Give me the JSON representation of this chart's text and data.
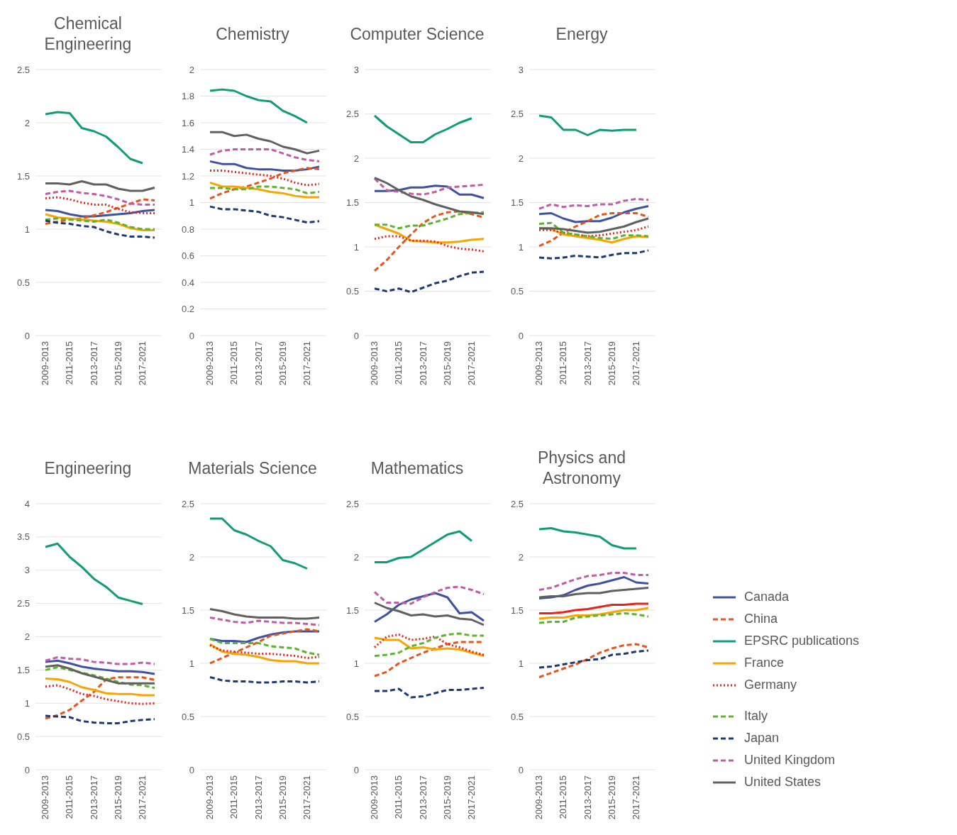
{
  "chart_data": [
    {
      "type": "line",
      "title": "Chemical Engineering",
      "categories": [
        "2009-2013",
        null,
        "2011-2015",
        null,
        "2013-2017",
        null,
        "2015-2019",
        null,
        "2017-2021",
        null
      ],
      "ylim": [
        0,
        2.5
      ],
      "yticks": [
        0,
        0.5,
        1,
        1.5,
        2,
        2.5
      ],
      "grid": "y",
      "legend": "right",
      "series": [
        {
          "name": "Canada",
          "color": "#3f51a3",
          "line_style": "solid",
          "values": [
            1.18,
            1.17,
            1.14,
            1.12,
            1.12,
            1.13,
            1.14,
            1.15,
            1.17,
            1.18
          ]
        },
        {
          "name": "China",
          "color": "#e8541a",
          "line_style": "dashed",
          "values": [
            1.05,
            1.07,
            1.09,
            1.1,
            1.13,
            1.16,
            1.2,
            1.24,
            1.28,
            1.27
          ]
        },
        {
          "name": "EPSRC publications",
          "color": "#0f9d77",
          "line_style": "solid",
          "values": [
            2.08,
            2.1,
            2.09,
            1.95,
            1.92,
            1.87,
            1.77,
            1.66,
            1.62,
            null
          ]
        },
        {
          "name": "France",
          "color": "#f9a400",
          "line_style": "solid",
          "values": [
            1.14,
            1.11,
            1.1,
            1.09,
            1.08,
            1.07,
            1.05,
            1.01,
            0.99,
            0.99
          ]
        },
        {
          "name": "Germany",
          "color": "#e8231c",
          "line_style": "dotted",
          "values": [
            1.29,
            1.3,
            1.28,
            1.25,
            1.23,
            1.23,
            1.19,
            1.16,
            1.15,
            1.15
          ]
        },
        {
          "name": "Italy",
          "color": "#5db52e",
          "line_style": "dashed",
          "values": [
            1.09,
            1.1,
            1.09,
            1.08,
            1.07,
            1.09,
            1.06,
            1.02,
            1.0,
            1.0
          ]
        },
        {
          "name": "Japan",
          "color": "#1f3a6e",
          "line_style": "dashed",
          "values": [
            1.08,
            1.06,
            1.05,
            1.03,
            1.02,
            0.98,
            0.95,
            0.93,
            0.93,
            0.92
          ]
        },
        {
          "name": "United Kingdom",
          "color": "#c35ba8",
          "line_style": "dashed",
          "values": [
            1.33,
            1.35,
            1.36,
            1.34,
            1.33,
            1.31,
            1.28,
            1.24,
            1.23,
            1.23
          ]
        },
        {
          "name": "United States",
          "color": "#606060",
          "line_style": "solid",
          "values": [
            1.43,
            1.43,
            1.42,
            1.45,
            1.42,
            1.42,
            1.38,
            1.36,
            1.36,
            1.39
          ]
        }
      ]
    },
    {
      "type": "line",
      "title": "Chemistry",
      "categories": [
        "2009-2013",
        null,
        "2011-2015",
        null,
        "2013-2017",
        null,
        "2015-2019",
        null,
        "2017-2021",
        null
      ],
      "ylim": [
        0,
        2
      ],
      "yticks": [
        0,
        0.2,
        0.4,
        0.6,
        0.8,
        1,
        1.2,
        1.4,
        1.6,
        1.8,
        2
      ],
      "grid": "y",
      "series": [
        {
          "color": "#3f51a3",
          "line_style": "solid",
          "values": [
            1.31,
            1.29,
            1.29,
            1.26,
            1.25,
            1.25,
            1.24,
            1.24,
            1.25,
            1.27
          ]
        },
        {
          "color": "#e8541a",
          "line_style": "dashed",
          "values": [
            1.03,
            1.07,
            1.1,
            1.12,
            1.15,
            1.18,
            1.22,
            1.24,
            1.26,
            1.25
          ]
        },
        {
          "color": "#0f9d77",
          "line_style": "solid",
          "values": [
            1.84,
            1.85,
            1.84,
            1.8,
            1.77,
            1.76,
            1.69,
            1.65,
            1.6,
            null
          ]
        },
        {
          "color": "#f9a400",
          "line_style": "solid",
          "values": [
            1.15,
            1.12,
            1.12,
            1.11,
            1.1,
            1.08,
            1.07,
            1.05,
            1.04,
            1.04
          ]
        },
        {
          "color": "#e8231c",
          "line_style": "dotted",
          "values": [
            1.24,
            1.24,
            1.23,
            1.22,
            1.21,
            1.2,
            1.18,
            1.15,
            1.13,
            1.14
          ]
        },
        {
          "color": "#5db52e",
          "line_style": "dashed",
          "values": [
            1.11,
            1.11,
            1.1,
            1.1,
            1.12,
            1.12,
            1.11,
            1.1,
            1.07,
            1.08
          ]
        },
        {
          "color": "#1f3a6e",
          "line_style": "dashed",
          "values": [
            0.97,
            0.95,
            0.95,
            0.94,
            0.93,
            0.9,
            0.89,
            0.87,
            0.85,
            0.86
          ]
        },
        {
          "color": "#c35ba8",
          "line_style": "dashed",
          "values": [
            1.36,
            1.39,
            1.4,
            1.4,
            1.4,
            1.4,
            1.37,
            1.34,
            1.32,
            1.31
          ]
        },
        {
          "color": "#606060",
          "line_style": "solid",
          "values": [
            1.53,
            1.53,
            1.5,
            1.51,
            1.48,
            1.46,
            1.42,
            1.4,
            1.37,
            1.39
          ]
        }
      ]
    },
    {
      "type": "line",
      "title": "Computer Science",
      "categories": [
        "2009-2013",
        null,
        "2011-2015",
        null,
        "2013-2017",
        null,
        "2015-2019",
        null,
        "2017-2021",
        null
      ],
      "ylim": [
        0,
        3
      ],
      "yticks": [
        0,
        0.5,
        1,
        1.5,
        2,
        2.5,
        3
      ],
      "grid": "y",
      "series": [
        {
          "color": "#3f51a3",
          "line_style": "solid",
          "values": [
            1.63,
            1.63,
            1.64,
            1.67,
            1.67,
            1.69,
            1.68,
            1.59,
            1.59,
            1.55
          ]
        },
        {
          "color": "#e8541a",
          "line_style": "dashed",
          "values": [
            0.73,
            0.85,
            1.0,
            1.14,
            1.27,
            1.35,
            1.39,
            1.4,
            1.37,
            1.33
          ]
        },
        {
          "color": "#0f9d77",
          "line_style": "solid",
          "values": [
            2.48,
            2.36,
            2.27,
            2.18,
            2.18,
            2.27,
            2.33,
            2.4,
            2.45,
            null
          ]
        },
        {
          "color": "#f9a400",
          "line_style": "solid",
          "values": [
            1.25,
            1.2,
            1.15,
            1.07,
            1.06,
            1.05,
            1.05,
            1.06,
            1.08,
            1.09
          ]
        },
        {
          "color": "#e8231c",
          "line_style": "dotted",
          "values": [
            1.09,
            1.12,
            1.12,
            1.07,
            1.07,
            1.06,
            1.01,
            0.98,
            0.97,
            0.95
          ]
        },
        {
          "color": "#5db52e",
          "line_style": "dashed",
          "values": [
            1.25,
            1.25,
            1.21,
            1.24,
            1.24,
            1.28,
            1.32,
            1.37,
            1.38,
            1.39
          ]
        },
        {
          "color": "#1f3a6e",
          "line_style": "dashed",
          "values": [
            0.53,
            0.5,
            0.53,
            0.49,
            0.54,
            0.59,
            0.62,
            0.67,
            0.71,
            0.72
          ]
        },
        {
          "color": "#c35ba8",
          "line_style": "dashed",
          "values": [
            1.77,
            1.64,
            1.62,
            1.6,
            1.59,
            1.62,
            1.67,
            1.68,
            1.69,
            1.7
          ]
        },
        {
          "color": "#606060",
          "line_style": "solid",
          "values": [
            1.78,
            1.72,
            1.64,
            1.57,
            1.53,
            1.48,
            1.44,
            1.4,
            1.39,
            1.37
          ]
        }
      ]
    },
    {
      "type": "line",
      "title": "Energy",
      "categories": [
        "2009-2013",
        null,
        "2011-2015",
        null,
        "2013-2017",
        null,
        "2015-2019",
        null,
        "2017-2021",
        null
      ],
      "ylim": [
        0,
        3
      ],
      "yticks": [
        0,
        0.5,
        1,
        1.5,
        2,
        2.5,
        3
      ],
      "grid": "y",
      "series": [
        {
          "color": "#3f51a3",
          "line_style": "solid",
          "values": [
            1.37,
            1.38,
            1.32,
            1.28,
            1.29,
            1.29,
            1.33,
            1.39,
            1.43,
            1.46
          ]
        },
        {
          "color": "#e8541a",
          "line_style": "dashed",
          "values": [
            1.01,
            1.07,
            1.16,
            1.23,
            1.29,
            1.36,
            1.38,
            1.38,
            1.38,
            1.34
          ]
        },
        {
          "color": "#0f9d77",
          "line_style": "solid",
          "values": [
            2.48,
            2.46,
            2.32,
            2.32,
            2.26,
            2.32,
            2.31,
            2.32,
            2.32,
            null
          ]
        },
        {
          "color": "#f9a400",
          "line_style": "solid",
          "values": [
            1.21,
            1.2,
            1.14,
            1.12,
            1.1,
            1.08,
            1.05,
            1.09,
            1.12,
            1.11
          ]
        },
        {
          "color": "#e8231c",
          "line_style": "dotted",
          "values": [
            1.19,
            1.19,
            1.16,
            1.14,
            1.12,
            1.13,
            1.15,
            1.17,
            1.19,
            1.23
          ]
        },
        {
          "color": "#5db52e",
          "line_style": "dashed",
          "values": [
            1.26,
            1.27,
            1.16,
            1.14,
            1.12,
            1.1,
            1.09,
            1.13,
            1.13,
            1.12
          ]
        },
        {
          "color": "#1f3a6e",
          "line_style": "dashed",
          "values": [
            0.88,
            0.87,
            0.88,
            0.9,
            0.89,
            0.88,
            0.91,
            0.93,
            0.93,
            0.96
          ]
        },
        {
          "color": "#c35ba8",
          "line_style": "dashed",
          "values": [
            1.43,
            1.48,
            1.45,
            1.47,
            1.46,
            1.48,
            1.48,
            1.52,
            1.54,
            1.53
          ]
        },
        {
          "color": "#606060",
          "line_style": "solid",
          "values": [
            1.21,
            1.21,
            1.2,
            1.18,
            1.16,
            1.17,
            1.2,
            1.23,
            1.28,
            1.32
          ]
        }
      ]
    },
    {
      "type": "line",
      "title": "Engineering",
      "categories": [
        "2009-2013",
        null,
        "2011-2015",
        null,
        "2013-2017",
        null,
        "2015-2019",
        null,
        "2017-2021",
        null
      ],
      "ylim": [
        0,
        4
      ],
      "yticks": [
        0,
        0.5,
        1,
        1.5,
        2,
        2.5,
        3,
        3.5,
        4
      ],
      "grid": "y",
      "series": [
        {
          "color": "#3f51a3",
          "line_style": "solid",
          "values": [
            1.62,
            1.64,
            1.6,
            1.55,
            1.52,
            1.5,
            1.48,
            1.48,
            1.47,
            1.44
          ]
        },
        {
          "color": "#e8541a",
          "line_style": "dashed",
          "values": [
            0.77,
            0.82,
            0.9,
            1.04,
            1.17,
            1.36,
            1.39,
            1.39,
            1.39,
            1.35
          ]
        },
        {
          "color": "#0f9d77",
          "line_style": "solid",
          "values": [
            3.35,
            3.4,
            3.2,
            3.05,
            2.87,
            2.75,
            2.59,
            2.54,
            2.49,
            null
          ]
        },
        {
          "color": "#f9a400",
          "line_style": "solid",
          "values": [
            1.37,
            1.36,
            1.32,
            1.24,
            1.2,
            1.15,
            1.14,
            1.14,
            1.12,
            1.12
          ]
        },
        {
          "color": "#e8231c",
          "line_style": "dotted",
          "values": [
            1.25,
            1.27,
            1.21,
            1.14,
            1.11,
            1.06,
            1.03,
            1.0,
            0.99,
            1.0
          ]
        },
        {
          "color": "#5db52e",
          "line_style": "dashed",
          "values": [
            1.5,
            1.54,
            1.5,
            1.46,
            1.42,
            1.37,
            1.32,
            1.28,
            1.27,
            1.23
          ]
        },
        {
          "color": "#1f3a6e",
          "line_style": "dashed",
          "values": [
            0.81,
            0.8,
            0.79,
            0.73,
            0.71,
            0.7,
            0.7,
            0.73,
            0.75,
            0.76
          ]
        },
        {
          "color": "#c35ba8",
          "line_style": "dashed",
          "values": [
            1.64,
            1.69,
            1.67,
            1.66,
            1.62,
            1.61,
            1.59,
            1.59,
            1.61,
            1.59
          ]
        },
        {
          "color": "#606060",
          "line_style": "solid",
          "values": [
            1.55,
            1.57,
            1.52,
            1.45,
            1.4,
            1.35,
            1.3,
            1.3,
            1.3,
            1.3
          ]
        }
      ]
    },
    {
      "type": "line",
      "title": "Materials Science",
      "categories": [
        "2009-2013",
        null,
        "2011-2015",
        null,
        "2013-2017",
        null,
        "2015-2019",
        null,
        "2017-2021",
        null
      ],
      "ylim": [
        0,
        2.5
      ],
      "yticks": [
        0,
        0.5,
        1,
        1.5,
        2,
        2.5
      ],
      "grid": "y",
      "series": [
        {
          "color": "#3f51a3",
          "line_style": "solid",
          "values": [
            1.23,
            1.21,
            1.21,
            1.2,
            1.24,
            1.27,
            1.29,
            1.3,
            1.3,
            1.3
          ]
        },
        {
          "color": "#e8541a",
          "line_style": "dashed",
          "values": [
            1.0,
            1.05,
            1.1,
            1.15,
            1.2,
            1.26,
            1.28,
            1.3,
            1.32,
            1.3
          ]
        },
        {
          "color": "#0f9d77",
          "line_style": "solid",
          "values": [
            2.36,
            2.36,
            2.25,
            2.21,
            2.15,
            2.1,
            1.97,
            1.94,
            1.89,
            null
          ]
        },
        {
          "color": "#f9a400",
          "line_style": "solid",
          "values": [
            1.18,
            1.11,
            1.09,
            1.08,
            1.06,
            1.03,
            1.02,
            1.02,
            1.0,
            1.0
          ]
        },
        {
          "color": "#e8231c",
          "line_style": "dotted",
          "values": [
            1.17,
            1.12,
            1.11,
            1.1,
            1.09,
            1.09,
            1.08,
            1.07,
            1.05,
            1.06
          ]
        },
        {
          "color": "#5db52e",
          "line_style": "dashed",
          "values": [
            1.23,
            1.19,
            1.19,
            1.19,
            1.19,
            1.16,
            1.15,
            1.14,
            1.1,
            1.08
          ]
        },
        {
          "color": "#1f3a6e",
          "line_style": "dashed",
          "values": [
            0.87,
            0.84,
            0.83,
            0.83,
            0.82,
            0.82,
            0.83,
            0.83,
            0.82,
            0.83
          ]
        },
        {
          "color": "#c35ba8",
          "line_style": "dashed",
          "values": [
            1.43,
            1.41,
            1.39,
            1.38,
            1.4,
            1.39,
            1.38,
            1.38,
            1.37,
            1.36
          ]
        },
        {
          "color": "#606060",
          "line_style": "solid",
          "values": [
            1.51,
            1.49,
            1.46,
            1.44,
            1.43,
            1.43,
            1.43,
            1.42,
            1.42,
            1.43
          ]
        }
      ]
    },
    {
      "type": "line",
      "title": "Mathematics",
      "categories": [
        "2009-2013",
        null,
        "2011-2015",
        null,
        "2013-2017",
        null,
        "2015-2019",
        null,
        "2017-2021",
        null
      ],
      "ylim": [
        0,
        2.5
      ],
      "yticks": [
        0,
        0.5,
        1,
        1.5,
        2,
        2.5
      ],
      "grid": "y",
      "series": [
        {
          "color": "#3f51a3",
          "line_style": "solid",
          "values": [
            1.39,
            1.46,
            1.55,
            1.6,
            1.63,
            1.66,
            1.62,
            1.47,
            1.48,
            1.4
          ]
        },
        {
          "color": "#e8541a",
          "line_style": "dashed",
          "values": [
            0.88,
            0.92,
            1.0,
            1.05,
            1.1,
            1.14,
            1.18,
            1.2,
            1.2,
            1.2
          ]
        },
        {
          "color": "#0f9d77",
          "line_style": "solid",
          "values": [
            1.95,
            1.95,
            1.99,
            2.0,
            2.07,
            2.14,
            2.21,
            2.24,
            2.15,
            null
          ]
        },
        {
          "color": "#f9a400",
          "line_style": "solid",
          "values": [
            1.24,
            1.22,
            1.22,
            1.14,
            1.15,
            1.13,
            1.14,
            1.13,
            1.1,
            1.07
          ]
        },
        {
          "color": "#e8231c",
          "line_style": "dotted",
          "values": [
            1.15,
            1.25,
            1.27,
            1.22,
            1.23,
            1.25,
            1.18,
            1.15,
            1.11,
            1.08
          ]
        },
        {
          "color": "#5db52e",
          "line_style": "dashed",
          "values": [
            1.07,
            1.08,
            1.1,
            1.16,
            1.19,
            1.24,
            1.27,
            1.28,
            1.26,
            1.26
          ]
        },
        {
          "color": "#1f3a6e",
          "line_style": "dashed",
          "values": [
            0.74,
            0.74,
            0.76,
            0.68,
            0.69,
            0.72,
            0.75,
            0.75,
            0.76,
            0.77
          ]
        },
        {
          "color": "#c35ba8",
          "line_style": "dashed",
          "values": [
            1.67,
            1.57,
            1.57,
            1.56,
            1.62,
            1.67,
            1.71,
            1.72,
            1.69,
            1.65
          ]
        },
        {
          "color": "#606060",
          "line_style": "solid",
          "values": [
            1.57,
            1.52,
            1.49,
            1.45,
            1.46,
            1.44,
            1.45,
            1.42,
            1.41,
            1.36
          ]
        }
      ]
    },
    {
      "type": "line",
      "title": "Physics and Astronomy",
      "categories": [
        "2009-2013",
        null,
        "2011-2015",
        null,
        "2013-2017",
        null,
        "2015-2019",
        null,
        "2017-2021",
        null
      ],
      "ylim": [
        0,
        2.5
      ],
      "yticks": [
        0,
        0.5,
        1,
        1.5,
        2,
        2.5
      ],
      "grid": "y",
      "series": [
        {
          "color": "#3f51a3",
          "line_style": "solid",
          "values": [
            1.61,
            1.62,
            1.64,
            1.69,
            1.73,
            1.75,
            1.78,
            1.81,
            1.76,
            1.75
          ]
        },
        {
          "color": "#e8541a",
          "line_style": "dashed",
          "values": [
            0.87,
            0.91,
            0.95,
            0.99,
            1.04,
            1.1,
            1.14,
            1.17,
            1.18,
            1.15
          ]
        },
        {
          "color": "#0f9d77",
          "line_style": "solid",
          "values": [
            2.26,
            2.27,
            2.24,
            2.23,
            2.21,
            2.19,
            2.11,
            2.08,
            2.08,
            null
          ]
        },
        {
          "color": "#f9a400",
          "line_style": "solid",
          "values": [
            1.42,
            1.43,
            1.43,
            1.45,
            1.45,
            1.46,
            1.48,
            1.5,
            1.5,
            1.52
          ]
        },
        {
          "color": "#e8231c",
          "line_style": "solid",
          "values": [
            1.47,
            1.47,
            1.48,
            1.5,
            1.51,
            1.53,
            1.55,
            1.55,
            1.56,
            1.56
          ]
        },
        {
          "color": "#5db52e",
          "line_style": "dashed",
          "values": [
            1.38,
            1.39,
            1.39,
            1.43,
            1.44,
            1.45,
            1.46,
            1.47,
            1.46,
            1.44
          ]
        },
        {
          "color": "#1f3a6e",
          "line_style": "dashed",
          "values": [
            0.96,
            0.97,
            0.99,
            1.01,
            1.03,
            1.04,
            1.08,
            1.09,
            1.11,
            1.12
          ]
        },
        {
          "color": "#c35ba8",
          "line_style": "dashed",
          "values": [
            1.69,
            1.71,
            1.75,
            1.79,
            1.82,
            1.83,
            1.85,
            1.85,
            1.83,
            1.83
          ]
        },
        {
          "color": "#606060",
          "line_style": "solid",
          "values": [
            1.62,
            1.63,
            1.63,
            1.65,
            1.66,
            1.66,
            1.68,
            1.69,
            1.7,
            1.71
          ]
        }
      ]
    }
  ]
}
